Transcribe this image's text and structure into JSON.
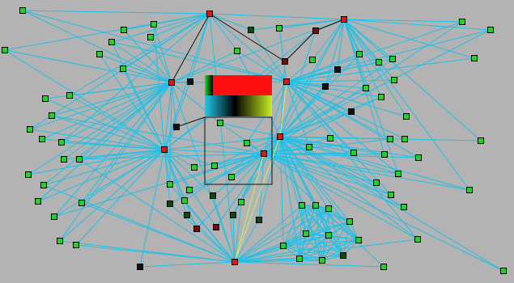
{
  "background": "#b3b3b3",
  "edge_color": "#1ec0e8",
  "highlight_edge_color": "#d8f060",
  "node_colors": {
    "hub": "#e81414",
    "dim_hub": "#7a0a0a",
    "leaf": "#22d422",
    "dark": "#0d4a0d",
    "black": "#111111"
  }
}
